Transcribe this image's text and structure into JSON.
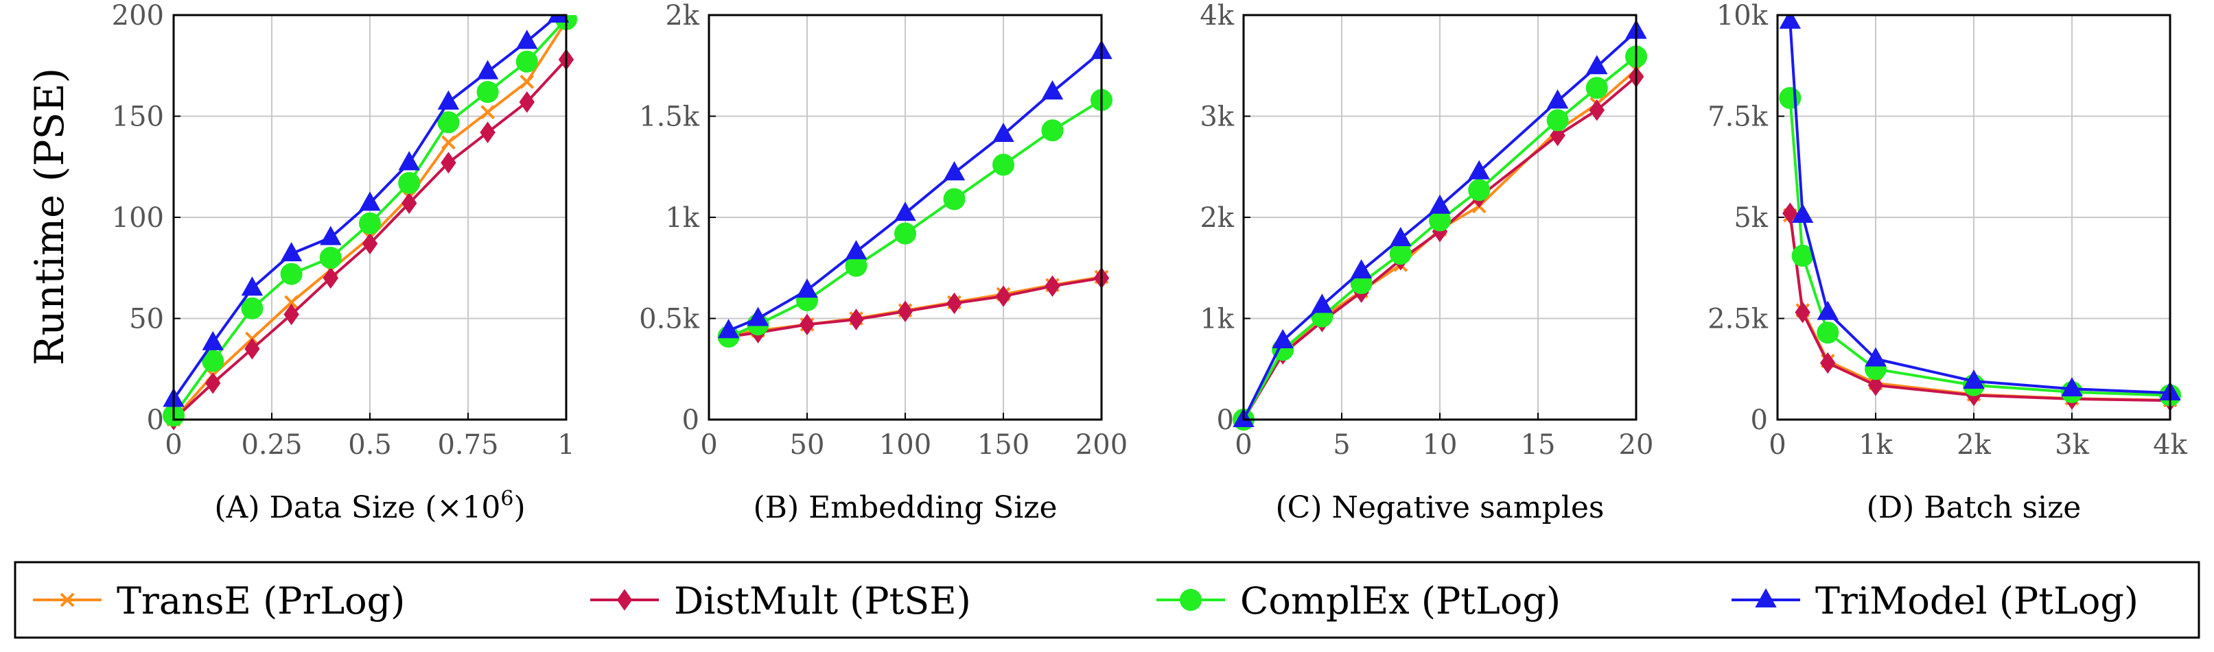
{
  "figure": {
    "ylabel": "Runtime (PSE)"
  },
  "colors": {
    "transe": "#ff8c1a",
    "distmult": "#c8144b",
    "complex": "#22ee22",
    "trimodel": "#1a1aee",
    "grid": "#c8c8c8",
    "axis": "#000000",
    "tick_text": "#555555"
  },
  "legend": {
    "items": [
      {
        "key": "transe",
        "label": "TransE (PrLog)",
        "marker": "x"
      },
      {
        "key": "distmult",
        "label": "DistMult (PtSE)",
        "marker": "diamond"
      },
      {
        "key": "complex",
        "label": "ComplEx (PtLog)",
        "marker": "circle"
      },
      {
        "key": "trimodel",
        "label": "TriModel (PtLog)",
        "marker": "triangle"
      }
    ]
  },
  "chart_data": [
    {
      "type": "line",
      "id": "A",
      "xlabel": "(A) Data Size (×10",
      "xlabel_sup": "6",
      "xlabel_end": ")",
      "xlim": [
        0,
        1
      ],
      "ylim": [
        0,
        200
      ],
      "xticks": [
        0,
        0.25,
        0.5,
        0.75,
        1
      ],
      "xtick_labels": [
        "0",
        "0.25",
        "0.5",
        "0.75",
        "1"
      ],
      "yticks": [
        0,
        50,
        100,
        150,
        200
      ],
      "ytick_labels": [
        "0",
        "50",
        "100",
        "150",
        "200"
      ],
      "grid": true,
      "series": [
        {
          "key": "transe",
          "name": "TransE (PrLog)",
          "x": [
            0,
            0.1,
            0.2,
            0.3,
            0.4,
            0.5,
            0.6,
            0.7,
            0.8,
            0.9,
            1.0
          ],
          "y": [
            0,
            22,
            40,
            58,
            74,
            90,
            110,
            137,
            152,
            167,
            197
          ]
        },
        {
          "key": "distmult",
          "name": "DistMult (PtSE)",
          "x": [
            0,
            0.1,
            0.2,
            0.3,
            0.4,
            0.5,
            0.6,
            0.7,
            0.8,
            0.9,
            1.0
          ],
          "y": [
            0,
            18,
            35,
            52,
            70,
            87,
            107,
            127,
            142,
            157,
            178
          ]
        },
        {
          "key": "complex",
          "name": "ComplEx (PtLog)",
          "x": [
            0,
            0.1,
            0.2,
            0.3,
            0.4,
            0.5,
            0.6,
            0.7,
            0.8,
            0.9,
            1.0
          ],
          "y": [
            2,
            29,
            55,
            72,
            80,
            97,
            117,
            147,
            162,
            177,
            198
          ]
        },
        {
          "key": "trimodel",
          "name": "TriModel (PtLog)",
          "x": [
            0,
            0.1,
            0.2,
            0.3,
            0.4,
            0.5,
            0.6,
            0.7,
            0.8,
            0.9,
            0.98
          ],
          "y": [
            10,
            38,
            65,
            82,
            90,
            107,
            127,
            157,
            172,
            187,
            200
          ]
        }
      ]
    },
    {
      "type": "line",
      "id": "B",
      "xlabel": "(B) Embedding Size",
      "xlim": [
        0,
        200
      ],
      "ylim": [
        0,
        2000
      ],
      "xticks": [
        0,
        50,
        100,
        150,
        200
      ],
      "xtick_labels": [
        "0",
        "50",
        "100",
        "150",
        "200"
      ],
      "yticks": [
        0,
        500,
        1000,
        1500,
        2000
      ],
      "ytick_labels": [
        "0",
        "0.5k",
        "1k",
        "1.5k",
        "2k"
      ],
      "grid": true,
      "series": [
        {
          "key": "transe",
          "name": "TransE (PrLog)",
          "x": [
            10,
            25,
            50,
            75,
            100,
            125,
            150,
            175,
            200
          ],
          "y": [
            420,
            440,
            470,
            500,
            540,
            580,
            620,
            665,
            705
          ]
        },
        {
          "key": "distmult",
          "name": "DistMult (PtSE)",
          "x": [
            10,
            25,
            50,
            75,
            100,
            125,
            150,
            175,
            200
          ],
          "y": [
            410,
            430,
            470,
            495,
            535,
            575,
            610,
            660,
            700
          ]
        },
        {
          "key": "complex",
          "name": "ComplEx (PtLog)",
          "x": [
            10,
            25,
            50,
            75,
            100,
            125,
            150,
            175,
            200
          ],
          "y": [
            410,
            470,
            590,
            760,
            920,
            1090,
            1260,
            1430,
            1580
          ]
        },
        {
          "key": "trimodel",
          "name": "TriModel (PtLog)",
          "x": [
            10,
            25,
            50,
            75,
            100,
            125,
            150,
            175,
            200
          ],
          "y": [
            440,
            500,
            640,
            830,
            1020,
            1220,
            1410,
            1620,
            1820
          ]
        }
      ]
    },
    {
      "type": "line",
      "id": "C",
      "xlabel": "(C) Negative samples",
      "xlim": [
        0,
        20
      ],
      "ylim": [
        0,
        4000
      ],
      "xticks": [
        0,
        5,
        10,
        15,
        20
      ],
      "xtick_labels": [
        "0",
        "5",
        "10",
        "15",
        "20"
      ],
      "yticks": [
        0,
        1000,
        2000,
        3000,
        4000
      ],
      "ytick_labels": [
        "0",
        "1k",
        "2k",
        "3k",
        "4k"
      ],
      "grid": true,
      "series": [
        {
          "key": "transe",
          "name": "TransE (PrLog)",
          "x": [
            0,
            2,
            4,
            6,
            8,
            10,
            12,
            16,
            18,
            20
          ],
          "y": [
            0,
            680,
            1010,
            1270,
            1530,
            1880,
            2110,
            2860,
            3120,
            3460
          ]
        },
        {
          "key": "distmult",
          "name": "DistMult (PtSE)",
          "x": [
            0,
            2,
            4,
            6,
            8,
            10,
            12,
            16,
            18,
            20
          ],
          "y": [
            0,
            650,
            970,
            1260,
            1580,
            1860,
            2200,
            2810,
            3060,
            3390
          ]
        },
        {
          "key": "complex",
          "name": "ComplEx (PtLog)",
          "x": [
            0,
            2,
            4,
            6,
            8,
            10,
            12,
            16,
            18,
            20
          ],
          "y": [
            0,
            690,
            1020,
            1350,
            1640,
            1970,
            2270,
            2960,
            3280,
            3590
          ]
        },
        {
          "key": "trimodel",
          "name": "TriModel (PtLog)",
          "x": [
            0,
            2,
            4,
            6,
            8,
            10,
            12,
            16,
            18,
            20
          ],
          "y": [
            0,
            780,
            1130,
            1470,
            1790,
            2110,
            2450,
            3150,
            3490,
            3840
          ]
        }
      ]
    },
    {
      "type": "line",
      "id": "D",
      "xlabel": "(D) Batch size",
      "xlim": [
        0,
        4000
      ],
      "ylim": [
        0,
        10000
      ],
      "xticks": [
        0,
        1000,
        2000,
        3000,
        4000
      ],
      "xtick_labels": [
        "0",
        "1k",
        "2k",
        "3k",
        "4k"
      ],
      "yticks": [
        0,
        2500,
        5000,
        7500,
        10000
      ],
      "ytick_labels": [
        "0",
        "2.5k",
        "5k",
        "7.5k",
        "10k"
      ],
      "grid": true,
      "series": [
        {
          "key": "transe",
          "name": "TransE (PrLog)",
          "x": [
            128,
            256,
            512,
            1000,
            2000,
            3000,
            4000
          ],
          "y": [
            5050,
            2700,
            1450,
            900,
            620,
            520,
            480
          ]
        },
        {
          "key": "distmult",
          "name": "DistMult (PtSE)",
          "x": [
            128,
            256,
            512,
            1000,
            2000,
            3000,
            4000
          ],
          "y": [
            5100,
            2650,
            1400,
            850,
            600,
            510,
            470
          ]
        },
        {
          "key": "complex",
          "name": "ComplEx (PtLog)",
          "x": [
            128,
            256,
            512,
            1000,
            2000,
            3000,
            4000
          ],
          "y": [
            7950,
            4050,
            2150,
            1250,
            850,
            680,
            600
          ]
        },
        {
          "key": "trimodel",
          "name": "TriModel (PtLog)",
          "x": [
            128,
            256,
            512,
            1000,
            2000,
            3000,
            4000
          ],
          "y": [
            9850,
            5050,
            2650,
            1500,
            950,
            760,
            660
          ]
        }
      ]
    }
  ]
}
